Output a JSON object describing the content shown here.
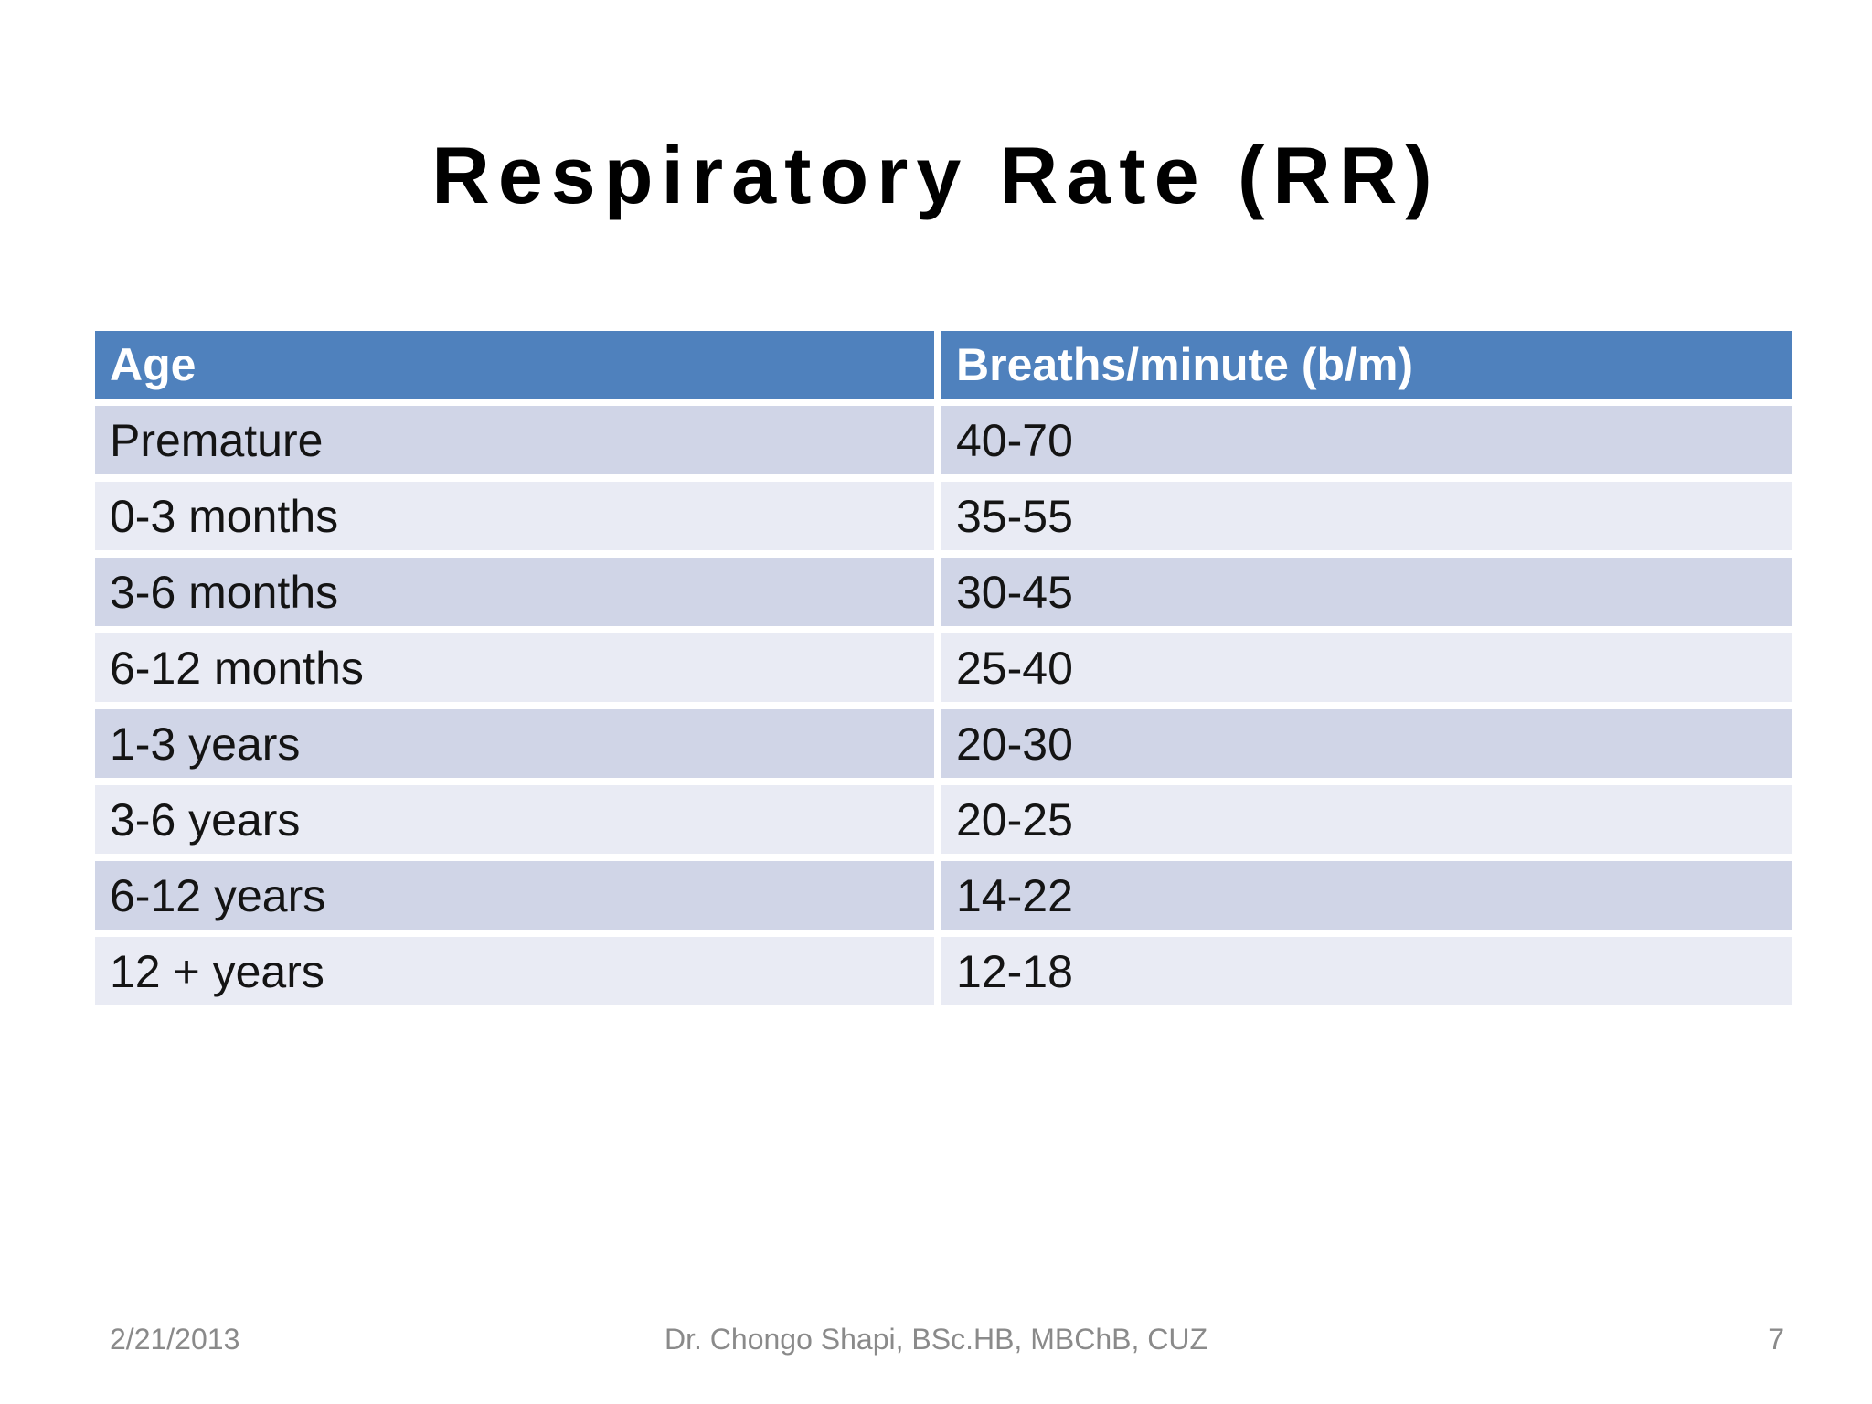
{
  "title": "Respiratory Rate (RR)",
  "table": {
    "headers": [
      "Age",
      "Breaths/minute (b/m)"
    ],
    "rows": [
      {
        "age": "Premature",
        "breaths": "40-70"
      },
      {
        "age": "0-3 months",
        "breaths": "35-55"
      },
      {
        "age": "3-6 months",
        "breaths": "30-45"
      },
      {
        "age": "6-12 months",
        "breaths": "25-40"
      },
      {
        "age": "1-3 years",
        "breaths": "20-30"
      },
      {
        "age": "3-6 years",
        "breaths": "20-25"
      },
      {
        "age": "6-12 years",
        "breaths": "14-22"
      },
      {
        "age": "12 + years",
        "breaths": "12-18"
      }
    ]
  },
  "footer": {
    "date": "2/21/2013",
    "author": "Dr. Chongo Shapi, BSc.HB, MBChB, CUZ",
    "page": "7"
  },
  "colors": {
    "header_bg": "#4f81bd",
    "row_odd_bg": "#d0d5e7",
    "row_even_bg": "#e9ebf4",
    "header_text": "#ffffff",
    "body_text": "#141414",
    "title_text": "#000000",
    "footer_text": "#8a8a8a"
  }
}
